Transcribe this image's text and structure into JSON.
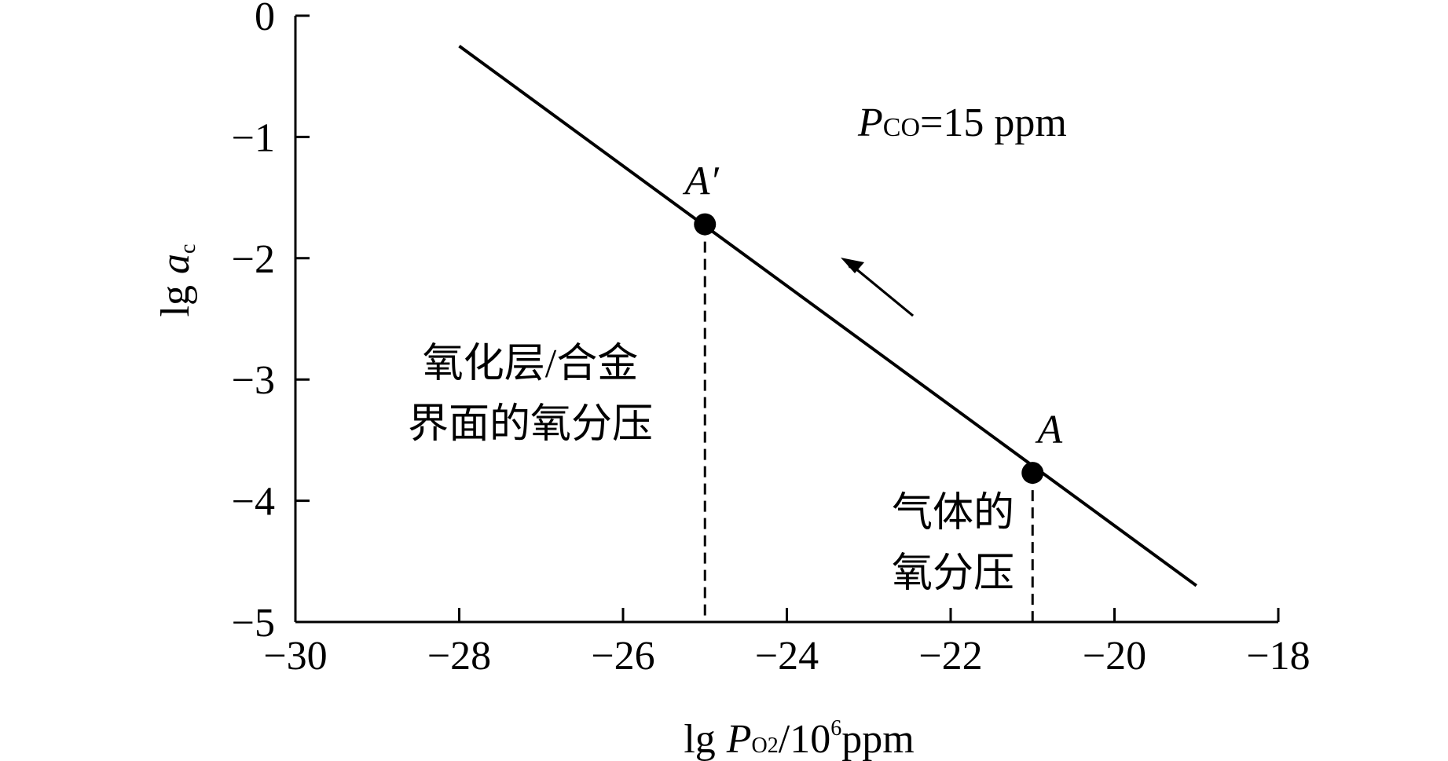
{
  "chart_data": {
    "type": "line",
    "xlabel": [
      "lg",
      "P",
      "O2",
      "/10",
      "6",
      "ppm"
    ],
    "ylabel": [
      "lg",
      "a",
      "c"
    ],
    "annotation": [
      "P",
      "CO",
      "=15 ppm"
    ],
    "notes": [
      [
        "氧化层/合金",
        "界面的氧分压"
      ],
      [
        "气体的",
        "氧分压"
      ]
    ],
    "xlim": [
      -30,
      -18
    ],
    "ylim": [
      -5,
      0
    ],
    "xticks": [
      {
        "value": -30,
        "label": "−30"
      },
      {
        "value": -28,
        "label": "−28"
      },
      {
        "value": -26,
        "label": "−26"
      },
      {
        "value": -24,
        "label": "−24"
      },
      {
        "value": -22,
        "label": "−22"
      },
      {
        "value": -20,
        "label": "−20"
      },
      {
        "value": -18,
        "label": "−18"
      }
    ],
    "yticks": [
      {
        "value": -5,
        "label": "−5"
      },
      {
        "value": -4,
        "label": "−4"
      },
      {
        "value": -3,
        "label": "−3"
      },
      {
        "value": -2,
        "label": "−2"
      },
      {
        "value": -1,
        "label": "−1"
      },
      0
    ],
    "series": [
      {
        "color": "#000000",
        "x": [
          -28,
          -19
        ],
        "values": [
          -0.25,
          -4.7
        ]
      }
    ],
    "points": [
      {
        "label": "A′",
        "x": -25,
        "y": -1.72
      },
      {
        "label": "A",
        "x": -21,
        "y": -3.77
      }
    ]
  }
}
